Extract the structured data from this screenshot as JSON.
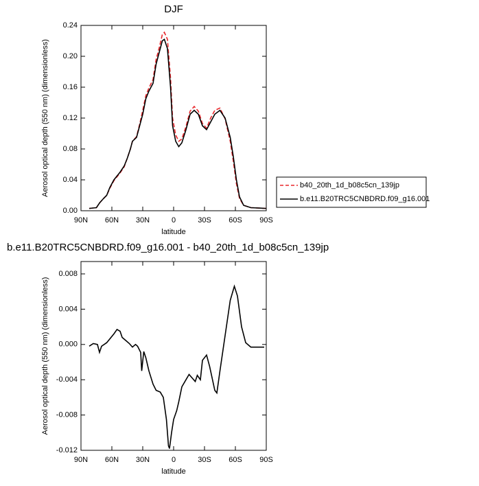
{
  "chart_data": [
    {
      "type": "line",
      "title": "DJF",
      "x_label": "latitude",
      "y_label": "Aerosol optical depth (550 nm) (dimensionless)",
      "x": [
        82,
        75,
        72,
        68,
        65,
        62,
        58,
        52,
        48,
        45,
        42,
        40,
        36,
        33,
        30,
        27,
        24,
        20,
        17,
        14,
        11,
        9,
        6,
        3,
        1,
        -2,
        -5,
        -8,
        -12,
        -16,
        -20,
        -24,
        -28,
        -32,
        -36,
        -40,
        -45,
        -50,
        -55,
        -58,
        -61,
        -64,
        -68,
        -75,
        -90
      ],
      "series": [
        {
          "name": "b40_20th_1d_b08c5cn_139jp",
          "color": "#e8262a",
          "dashed": true,
          "values": [
            0.003,
            0.004,
            0.01,
            0.016,
            0.02,
            0.029,
            0.039,
            0.049,
            0.057,
            0.068,
            0.08,
            0.09,
            0.096,
            0.112,
            0.13,
            0.149,
            0.159,
            0.17,
            0.196,
            0.211,
            0.228,
            0.231,
            0.222,
            0.172,
            0.12,
            0.098,
            0.09,
            0.093,
            0.109,
            0.129,
            0.135,
            0.129,
            0.113,
            0.107,
            0.12,
            0.13,
            0.133,
            0.119,
            0.09,
            0.064,
            0.035,
            0.016,
            0.007,
            0.004,
            0.003
          ]
        },
        {
          "name": "b.e11.B20TRC5CNBDRD.f09_g16.001",
          "color": "#000000",
          "dashed": false,
          "values": [
            0.003,
            0.004,
            0.01,
            0.016,
            0.02,
            0.03,
            0.04,
            0.05,
            0.058,
            0.068,
            0.08,
            0.09,
            0.095,
            0.11,
            0.125,
            0.145,
            0.155,
            0.165,
            0.19,
            0.205,
            0.22,
            0.222,
            0.21,
            0.16,
            0.11,
            0.09,
            0.083,
            0.088,
            0.105,
            0.125,
            0.13,
            0.125,
            0.11,
            0.105,
            0.115,
            0.125,
            0.13,
            0.12,
            0.095,
            0.07,
            0.04,
            0.018,
            0.007,
            0.004,
            0.003
          ]
        }
      ],
      "xlim": [
        90,
        -90
      ],
      "xticks": [
        {
          "value": 90,
          "label": "90N"
        },
        {
          "value": 60,
          "label": "60N"
        },
        {
          "value": 30,
          "label": "30N"
        },
        0,
        {
          "value": -30,
          "label": "30S"
        },
        {
          "value": -60,
          "label": "60S"
        },
        {
          "value": -90,
          "label": "90S"
        }
      ],
      "ylim": [
        0,
        0.24
      ],
      "yticks": [
        {
          "value": 0,
          "label": "0.00"
        },
        0.04,
        0.08,
        0.12,
        0.16,
        {
          "value": 0.2,
          "label": "0.20"
        },
        0.24
      ],
      "legend": "right"
    },
    {
      "type": "line",
      "title": "b.e11.B20TRC5CNBDRD.f09_g16.001 - b40_20th_1d_b08c5cn_139jp",
      "x_label": "latitude",
      "y_label": "Aerosol optical depth (550 nm) (dimensionless)",
      "x": [
        82,
        78,
        74,
        72,
        70,
        65,
        58,
        55,
        52,
        50,
        46,
        43,
        40,
        37,
        35,
        32,
        31,
        29,
        27,
        24,
        20,
        17,
        13,
        10,
        7,
        5,
        4,
        2,
        0,
        -3,
        -5,
        -8,
        -12,
        -15,
        -18,
        -21,
        -23,
        -26,
        -28,
        -32,
        -35,
        -40,
        -42,
        -45,
        -50,
        -55,
        -59,
        -62,
        -66,
        -70,
        -75,
        -80,
        -88
      ],
      "series": [
        {
          "color": "#000000",
          "values": [
            -0.0002,
            0.0001,
            0.0,
            -0.0009,
            -0.0002,
            0.0002,
            0.0012,
            0.0017,
            0.0015,
            0.0008,
            0.0004,
            0.0001,
            -0.0003,
            0.0,
            -0.0002,
            -0.0009,
            -0.003,
            -0.0008,
            -0.0015,
            -0.003,
            -0.0045,
            -0.0052,
            -0.0054,
            -0.006,
            -0.0085,
            -0.0115,
            -0.0118,
            -0.01,
            -0.0085,
            -0.0075,
            -0.0065,
            -0.0048,
            -0.004,
            -0.0034,
            -0.0038,
            -0.0042,
            -0.0035,
            -0.004,
            -0.0018,
            -0.0012,
            -0.0025,
            -0.0052,
            -0.0055,
            -0.003,
            0.001,
            0.005,
            0.0066,
            0.0055,
            0.002,
            0.0002,
            -0.0003,
            -0.0003,
            -0.0003
          ]
        }
      ],
      "xlim": [
        90,
        -90
      ],
      "xticks": [
        {
          "value": 90,
          "label": "90N"
        },
        {
          "value": 60,
          "label": "60N"
        },
        {
          "value": 30,
          "label": "30N"
        },
        0,
        {
          "value": -30,
          "label": "30S"
        },
        {
          "value": -60,
          "label": "60S"
        },
        {
          "value": -90,
          "label": "90S"
        }
      ],
      "ylim": [
        -0.012,
        0.0094
      ],
      "yticks": [
        0.008,
        0.004,
        {
          "value": 0,
          "label": "0.000"
        },
        -0.004,
        -0.008,
        -0.012
      ]
    }
  ]
}
